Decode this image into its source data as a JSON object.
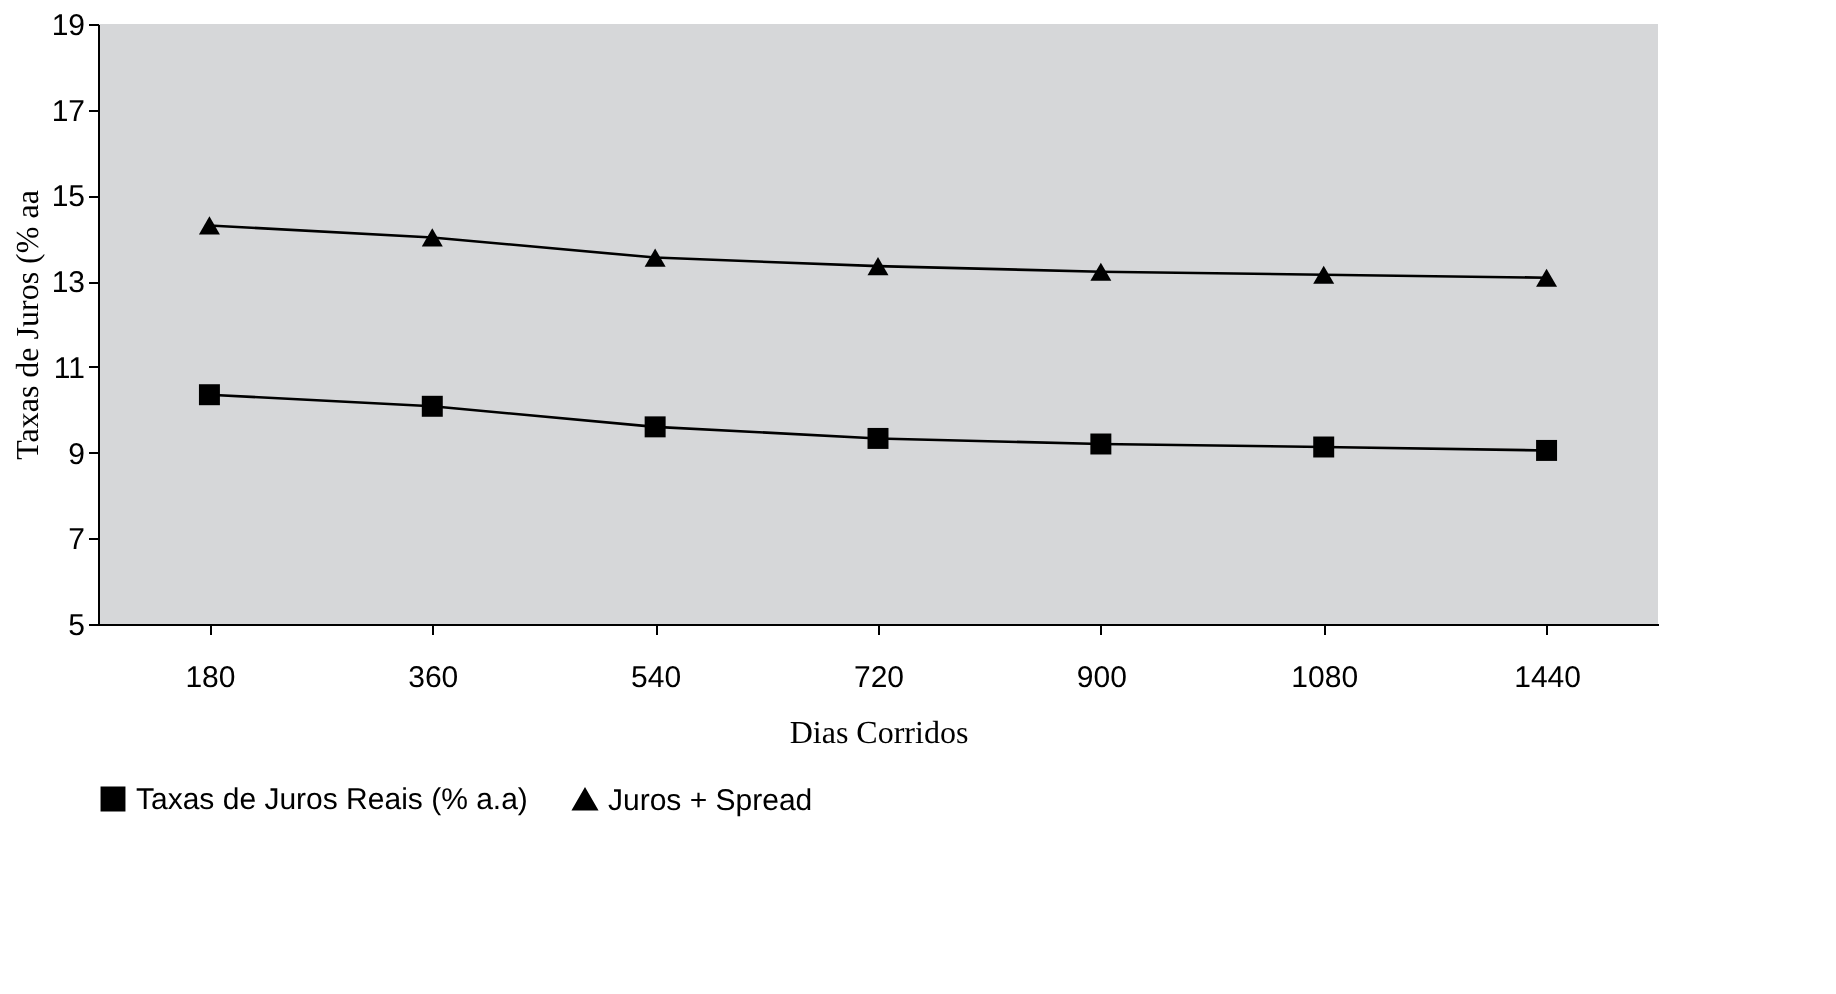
{
  "chart_data": {
    "type": "line",
    "xlabel": "Dias Corridos",
    "ylabel": "Taxas de Juros (% aa",
    "categories": [
      "180",
      "360",
      "540",
      "720",
      "900",
      "1080",
      "1440"
    ],
    "series": [
      {
        "name": "Taxas de Juros Reais (% a.a)",
        "color": "#000000",
        "marker": "square",
        "values": [
          10.35,
          10.08,
          9.6,
          9.33,
          9.2,
          9.13,
          9.05
        ]
      },
      {
        "name": "Juros + Spread",
        "color": "#000000",
        "marker": "triangle",
        "values": [
          14.3,
          14.02,
          13.55,
          13.35,
          13.22,
          13.15,
          13.08
        ]
      }
    ],
    "ylim": [
      5,
      19
    ],
    "yticks": [
      5,
      7,
      9,
      11,
      13,
      15,
      17,
      19
    ],
    "grid": false,
    "legend": "bottom",
    "line_style": "solid"
  }
}
